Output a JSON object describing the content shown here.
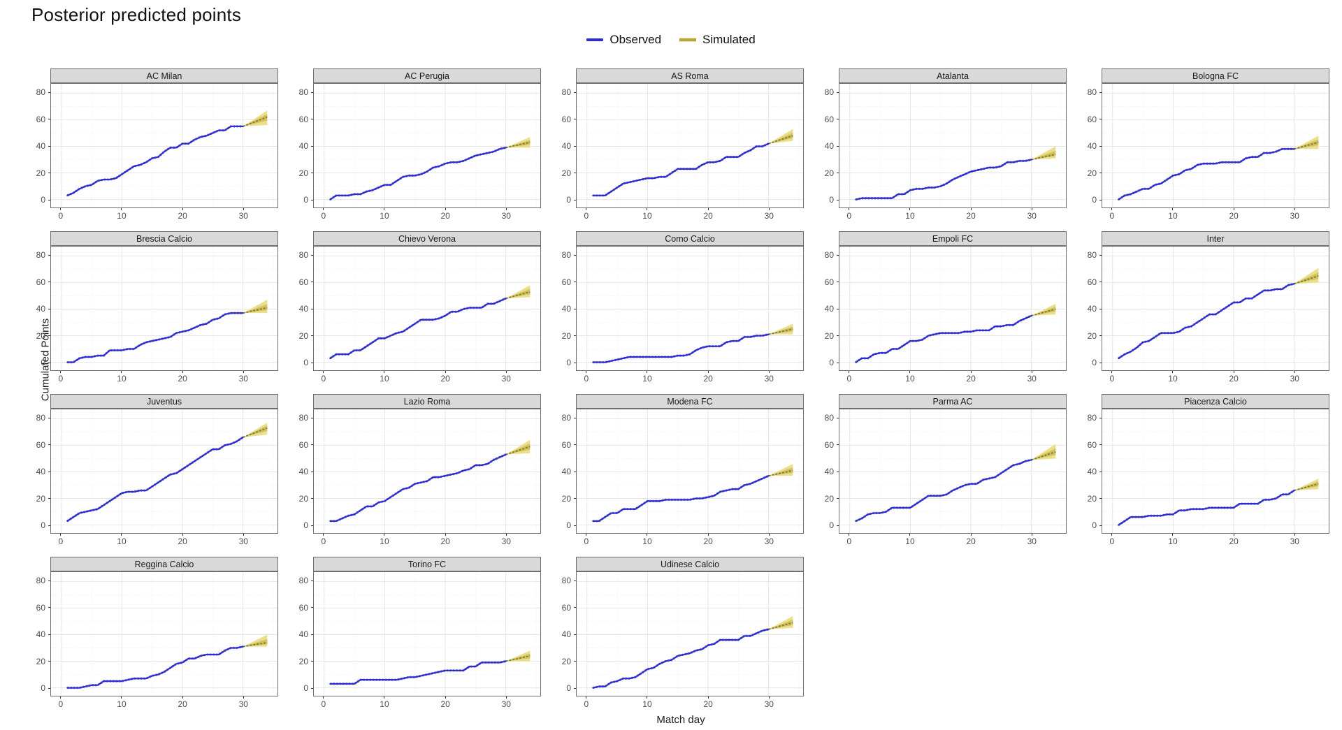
{
  "title": "Posterior predicted points",
  "legend": {
    "items": [
      {
        "label": "Observed",
        "color": "#2b2bd8",
        "type": "line"
      },
      {
        "label": "Simulated",
        "color": "#b3a642",
        "band_color": "#e9db7f",
        "type": "line-band"
      }
    ]
  },
  "axes": {
    "x_label": "Match day",
    "y_label": "Cumulated Points",
    "x_ticks": [
      0,
      10,
      20,
      30
    ],
    "x_minor": [
      5,
      15,
      25,
      35
    ],
    "y_ticks": [
      0,
      20,
      40,
      60,
      80
    ],
    "y_minor": [
      10,
      30,
      50,
      70
    ],
    "x_domain": [
      -1.7,
      35.7
    ],
    "y_domain": [
      -6,
      87
    ]
  },
  "style": {
    "observed_color": "#2b2bd8",
    "observed_underlay_color": "#8c8c8c",
    "sim_median_color": "#857c3a",
    "sim_band_outer": "#e9db7f",
    "sim_band_inner": "#cfc057",
    "grid_major": "#e6e6e6",
    "grid_minor": "#efefef",
    "strip_bg": "#d9d9d9",
    "panel_border": "#6e6e6e",
    "tick_color": "#333333",
    "tick_label_color": "#4d4d4d"
  },
  "chart_data": {
    "type": "line",
    "x_unit": "match_day",
    "observed_days": "1-30",
    "simulated_days": "30-34",
    "facets": [
      {
        "name": "AC Milan",
        "observed": [
          3,
          5,
          8,
          10,
          11,
          14,
          15,
          15,
          16,
          19,
          22,
          25,
          26,
          28,
          31,
          32,
          36,
          39,
          39,
          42,
          42,
          45,
          47,
          48,
          50,
          52,
          52,
          55,
          55,
          55
        ],
        "sim": {
          "end_day": 34,
          "median": 62,
          "low": 56,
          "high": 67
        }
      },
      {
        "name": "AC Perugia",
        "observed": [
          0,
          3,
          3,
          3,
          4,
          4,
          6,
          7,
          9,
          11,
          11,
          14,
          17,
          18,
          18,
          19,
          21,
          24,
          25,
          27,
          28,
          28,
          29,
          31,
          33,
          34,
          35,
          36,
          38,
          39
        ],
        "sim": {
          "end_day": 34,
          "median": 43,
          "low": 39,
          "high": 47
        }
      },
      {
        "name": "AS Roma",
        "observed": [
          3,
          3,
          3,
          6,
          9,
          12,
          13,
          14,
          15,
          16,
          16,
          17,
          17,
          20,
          23,
          23,
          23,
          23,
          26,
          28,
          28,
          29,
          32,
          32,
          32,
          35,
          37,
          40,
          40,
          42
        ],
        "sim": {
          "end_day": 34,
          "median": 48,
          "low": 44,
          "high": 53
        }
      },
      {
        "name": "Atalanta",
        "observed": [
          0,
          1,
          1,
          1,
          1,
          1,
          1,
          4,
          4,
          7,
          8,
          8,
          9,
          9,
          10,
          12,
          15,
          17,
          19,
          21,
          22,
          23,
          24,
          24,
          25,
          28,
          28,
          29,
          29,
          30
        ],
        "sim": {
          "end_day": 34,
          "median": 34,
          "low": 31,
          "high": 40
        }
      },
      {
        "name": "Bologna FC",
        "observed": [
          0,
          3,
          4,
          6,
          8,
          8,
          11,
          12,
          15,
          18,
          19,
          22,
          23,
          26,
          27,
          27,
          27,
          28,
          28,
          28,
          28,
          31,
          32,
          32,
          35,
          35,
          36,
          38,
          38,
          38
        ],
        "sim": {
          "end_day": 34,
          "median": 43,
          "low": 38,
          "high": 48
        }
      },
      {
        "name": "Brescia Calcio",
        "observed": [
          0,
          0,
          3,
          4,
          4,
          5,
          5,
          9,
          9,
          9,
          10,
          10,
          13,
          15,
          16,
          17,
          18,
          19,
          22,
          23,
          24,
          26,
          28,
          29,
          32,
          33,
          36,
          37,
          37,
          37
        ],
        "sim": {
          "end_day": 34,
          "median": 41,
          "low": 37,
          "high": 47
        }
      },
      {
        "name": "Chievo Verona",
        "observed": [
          3,
          6,
          6,
          6,
          9,
          9,
          12,
          15,
          18,
          18,
          20,
          22,
          23,
          26,
          29,
          32,
          32,
          32,
          33,
          35,
          38,
          38,
          40,
          41,
          41,
          41,
          44,
          44,
          46,
          48
        ],
        "sim": {
          "end_day": 34,
          "median": 53,
          "low": 49,
          "high": 58
        }
      },
      {
        "name": "Como Calcio",
        "observed": [
          0,
          0,
          0,
          1,
          2,
          3,
          4,
          4,
          4,
          4,
          4,
          4,
          4,
          4,
          5,
          5,
          6,
          9,
          11,
          12,
          12,
          12,
          15,
          16,
          16,
          19,
          19,
          20,
          20,
          21
        ],
        "sim": {
          "end_day": 34,
          "median": 25,
          "low": 21,
          "high": 29
        }
      },
      {
        "name": "Empoli FC",
        "observed": [
          0,
          3,
          3,
          6,
          7,
          7,
          10,
          10,
          13,
          16,
          16,
          17,
          20,
          21,
          22,
          22,
          22,
          22,
          23,
          23,
          24,
          24,
          24,
          27,
          27,
          28,
          28,
          31,
          33,
          35
        ],
        "sim": {
          "end_day": 34,
          "median": 40,
          "low": 36,
          "high": 44
        }
      },
      {
        "name": "Inter",
        "observed": [
          3,
          6,
          8,
          11,
          15,
          16,
          19,
          22,
          22,
          22,
          23,
          26,
          27,
          30,
          33,
          36,
          36,
          39,
          42,
          45,
          45,
          48,
          48,
          51,
          54,
          54,
          55,
          55,
          58,
          59
        ],
        "sim": {
          "end_day": 34,
          "median": 65,
          "low": 60,
          "high": 71
        }
      },
      {
        "name": "Juventus",
        "observed": [
          3,
          6,
          9,
          10,
          11,
          12,
          15,
          18,
          21,
          24,
          25,
          25,
          26,
          26,
          29,
          32,
          35,
          38,
          39,
          42,
          45,
          48,
          51,
          54,
          57,
          57,
          60,
          61,
          63,
          66
        ],
        "sim": {
          "end_day": 34,
          "median": 73,
          "low": 68,
          "high": 77
        }
      },
      {
        "name": "Lazio Roma",
        "observed": [
          3,
          3,
          5,
          7,
          8,
          11,
          14,
          14,
          17,
          18,
          21,
          24,
          27,
          28,
          31,
          32,
          33,
          36,
          36,
          37,
          38,
          39,
          41,
          42,
          45,
          45,
          46,
          49,
          51,
          53
        ],
        "sim": {
          "end_day": 34,
          "median": 59,
          "low": 54,
          "high": 64
        }
      },
      {
        "name": "Modena FC",
        "observed": [
          3,
          3,
          6,
          9,
          9,
          12,
          12,
          12,
          15,
          18,
          18,
          18,
          19,
          19,
          19,
          19,
          19,
          20,
          20,
          21,
          22,
          25,
          26,
          27,
          27,
          30,
          31,
          33,
          35,
          37
        ],
        "sim": {
          "end_day": 34,
          "median": 41,
          "low": 37,
          "high": 46
        }
      },
      {
        "name": "Parma AC",
        "observed": [
          3,
          5,
          8,
          9,
          9,
          10,
          13,
          13,
          13,
          13,
          16,
          19,
          22,
          22,
          22,
          23,
          26,
          28,
          30,
          31,
          31,
          34,
          35,
          36,
          39,
          42,
          45,
          46,
          48,
          49
        ],
        "sim": {
          "end_day": 34,
          "median": 55,
          "low": 50,
          "high": 61
        }
      },
      {
        "name": "Piacenza Calcio",
        "observed": [
          0,
          3,
          6,
          6,
          6,
          7,
          7,
          7,
          8,
          8,
          11,
          11,
          12,
          12,
          12,
          13,
          13,
          13,
          13,
          13,
          16,
          16,
          16,
          16,
          19,
          19,
          20,
          23,
          23,
          26
        ],
        "sim": {
          "end_day": 34,
          "median": 31,
          "low": 27,
          "high": 35
        }
      },
      {
        "name": "Reggina Calcio",
        "observed": [
          0,
          0,
          0,
          1,
          2,
          2,
          5,
          5,
          5,
          5,
          6,
          7,
          7,
          7,
          9,
          10,
          12,
          15,
          18,
          19,
          22,
          22,
          24,
          25,
          25,
          25,
          28,
          30,
          30,
          31
        ],
        "sim": {
          "end_day": 34,
          "median": 34,
          "low": 31,
          "high": 40
        }
      },
      {
        "name": "Torino FC",
        "observed": [
          3,
          3,
          3,
          3,
          3,
          6,
          6,
          6,
          6,
          6,
          6,
          6,
          7,
          8,
          8,
          9,
          10,
          11,
          12,
          13,
          13,
          13,
          13,
          16,
          16,
          19,
          19,
          19,
          19,
          20
        ],
        "sim": {
          "end_day": 34,
          "median": 24,
          "low": 20,
          "high": 28
        }
      },
      {
        "name": "Udinese Calcio",
        "observed": [
          0,
          1,
          1,
          4,
          5,
          7,
          7,
          8,
          11,
          14,
          15,
          18,
          20,
          21,
          24,
          25,
          26,
          28,
          29,
          32,
          33,
          36,
          36,
          36,
          36,
          39,
          39,
          41,
          43,
          44
        ],
        "sim": {
          "end_day": 34,
          "median": 49,
          "low": 45,
          "high": 54
        }
      }
    ]
  }
}
